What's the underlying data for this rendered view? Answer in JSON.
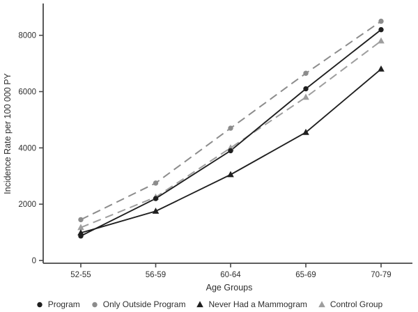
{
  "chart_data": {
    "type": "line",
    "categories": [
      "52-55",
      "56-59",
      "60-64",
      "65-69",
      "70-79"
    ],
    "series": [
      {
        "name": "Program",
        "marker": "circle",
        "line": "solid",
        "color": "#1f1f1f",
        "values": [
          870,
          2200,
          3900,
          6100,
          8200
        ]
      },
      {
        "name": "Only Outside Program",
        "marker": "circle",
        "line": "dashed",
        "color": "#8c8c8c",
        "values": [
          1450,
          2750,
          4700,
          6650,
          8500
        ]
      },
      {
        "name": "Never Had a Mammogram",
        "marker": "triangle",
        "line": "solid",
        "color": "#1f1f1f",
        "values": [
          980,
          1750,
          3050,
          4550,
          6800
        ]
      },
      {
        "name": "Control Group",
        "marker": "triangle",
        "line": "dashed",
        "color": "#9e9e9e",
        "values": [
          1170,
          2250,
          4000,
          5800,
          7800
        ]
      }
    ],
    "title": "",
    "xlabel": "Age Groups",
    "ylabel": "Incidence Rate per 100 000 PY",
    "ylim": [
      0,
      9100
    ],
    "yticks": [
      0,
      2000,
      4000,
      6000,
      8000
    ],
    "grid": false,
    "legend_position": "bottom",
    "axis_color": "#474747",
    "tick_label_color": "#2e2e2e"
  }
}
